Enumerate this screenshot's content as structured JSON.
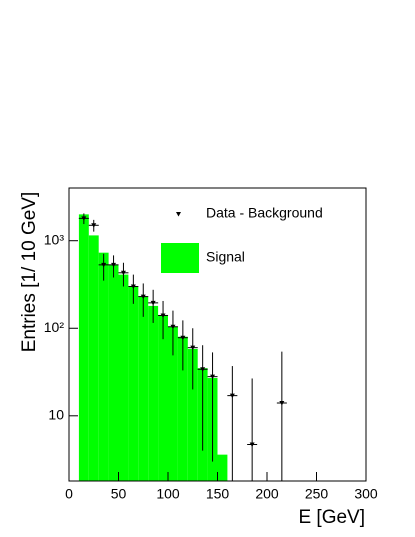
{
  "chart_data": {
    "type": "histogram",
    "xlabel": "E [GeV]",
    "ylabel": "Entries [1/ 10 GeV]",
    "log_y": true,
    "xlim": [
      0,
      300
    ],
    "ylim": [
      1.8,
      4000
    ],
    "xticks": [
      0,
      50,
      100,
      150,
      200,
      250,
      300
    ],
    "yticks": [
      10,
      {
        "value": 100,
        "label": "10²"
      },
      {
        "value": 1000,
        "label": "10³"
      }
    ],
    "bins": [
      10,
      20,
      30,
      40,
      50,
      60,
      70,
      80,
      90,
      100,
      110,
      120,
      130,
      140,
      150,
      160
    ],
    "series": [
      {
        "name": "Signal",
        "color": "#00ff00",
        "values": [
          2000,
          1150,
          730,
          530,
          410,
          300,
          230,
          180,
          140,
          104,
          80,
          58,
          35,
          27,
          3.6
        ]
      }
    ],
    "points": {
      "name": "Data - Background",
      "color": "#000000",
      "x": [
        15,
        25,
        35,
        45,
        55,
        65,
        75,
        85,
        95,
        105,
        115,
        125,
        135,
        145,
        165,
        185,
        215
      ],
      "values": [
        1800,
        1500,
        530,
        530,
        430,
        300,
        230,
        195,
        140,
        104,
        78,
        60,
        34,
        28,
        17,
        4.7,
        14
      ],
      "errors": [
        250,
        230,
        180,
        150,
        130,
        110,
        95,
        80,
        65,
        55,
        45,
        40,
        30,
        25,
        20,
        22,
        40
      ]
    }
  }
}
